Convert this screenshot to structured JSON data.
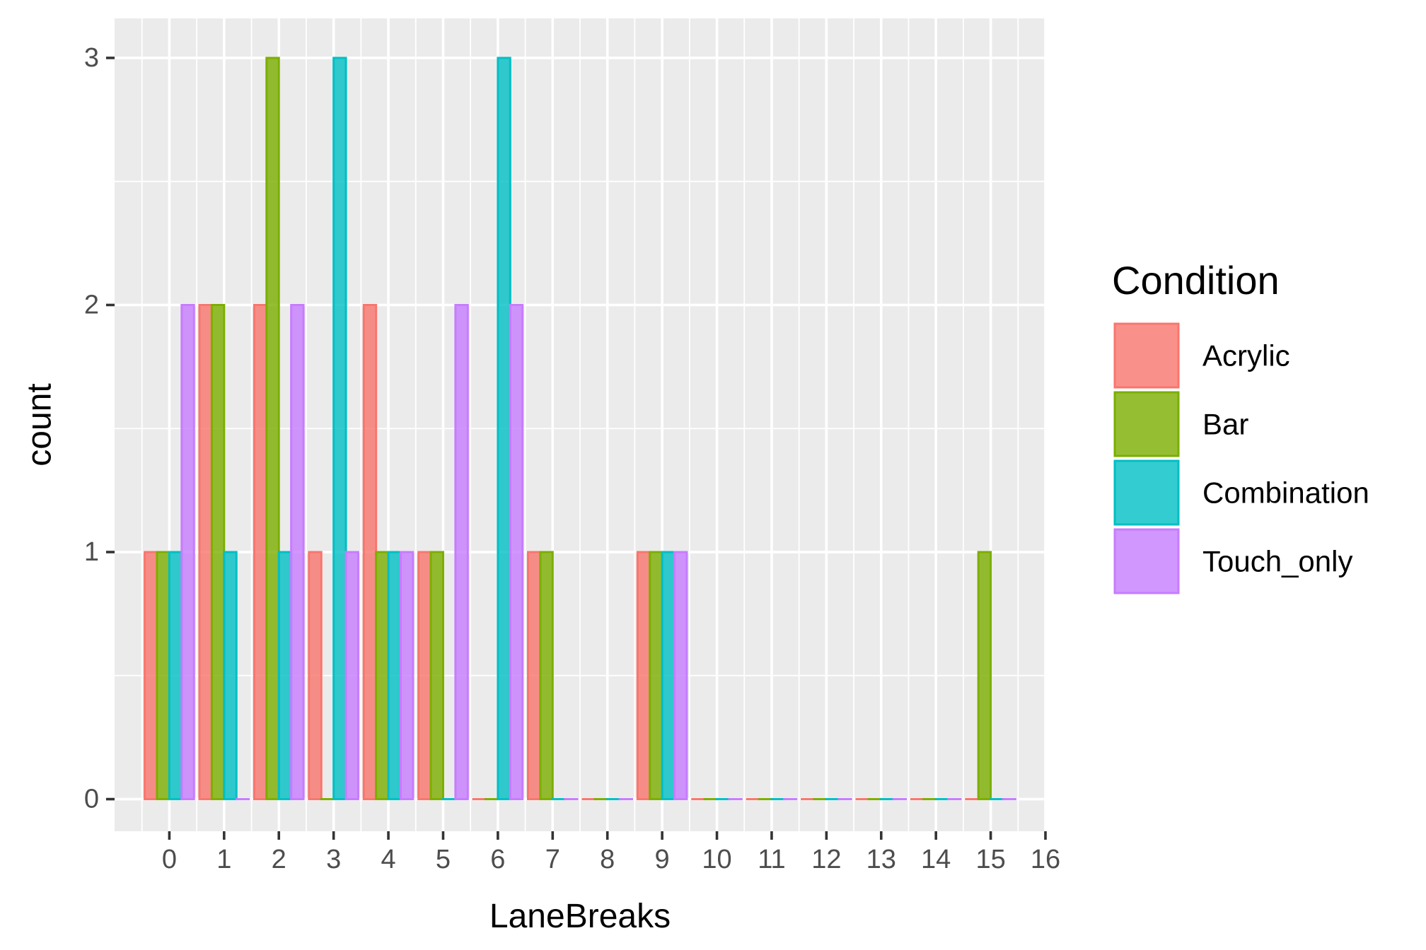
{
  "chart_data": {
    "type": "bar",
    "xlabel": "LaneBreaks",
    "ylabel": "count",
    "x": [
      0,
      1,
      2,
      3,
      4,
      5,
      6,
      7,
      8,
      9,
      10,
      11,
      12,
      13,
      14,
      15
    ],
    "xlim": [
      -1,
      16
    ],
    "x_ticks": [
      "0",
      "1",
      "2",
      "3",
      "4",
      "5",
      "6",
      "7",
      "8",
      "9",
      "10",
      "11",
      "12",
      "13",
      "14",
      "15",
      "16"
    ],
    "ylim": [
      -0.13,
      3.16
    ],
    "y_ticks": [
      "0",
      "1",
      "2",
      "3"
    ],
    "grid": true,
    "legend": {
      "title": "Condition",
      "position": "right"
    },
    "series": [
      {
        "name": "Acrylic",
        "color": "#F8766D",
        "values": [
          1,
          2,
          2,
          1,
          2,
          1,
          0,
          1,
          0,
          1,
          0,
          0,
          0,
          0,
          0,
          0
        ]
      },
      {
        "name": "Bar",
        "color": "#7CAE00",
        "values": [
          1,
          2,
          3,
          0,
          1,
          1,
          0,
          1,
          0,
          1,
          0,
          0,
          0,
          0,
          0,
          1
        ]
      },
      {
        "name": "Combination",
        "color": "#00BFC4",
        "values": [
          1,
          1,
          1,
          3,
          1,
          0,
          3,
          0,
          0,
          1,
          0,
          0,
          0,
          0,
          0,
          0
        ]
      },
      {
        "name": "Touch_only",
        "color": "#C77CFF",
        "values": [
          2,
          0,
          2,
          1,
          1,
          2,
          2,
          0,
          0,
          1,
          0,
          0,
          0,
          0,
          0,
          0
        ]
      }
    ]
  }
}
